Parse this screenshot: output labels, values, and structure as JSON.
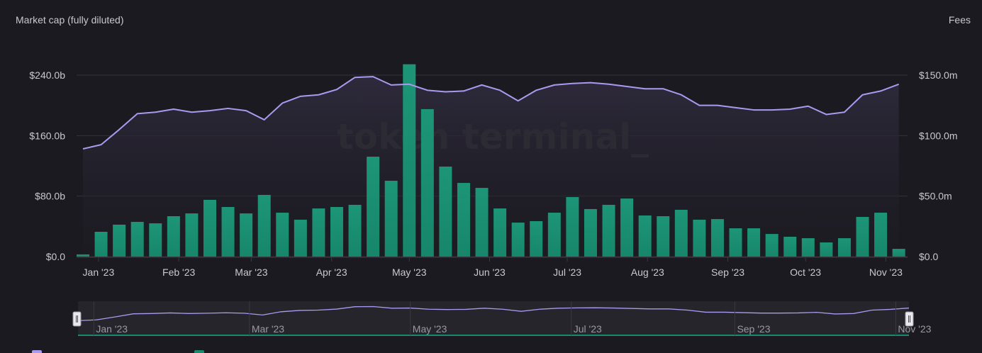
{
  "chart_data": {
    "type": "bar+line",
    "watermark": "token terminal_",
    "left_axis": {
      "title": "Market cap (fully diluted)",
      "ticks": [
        "$0.0",
        "$80.0b",
        "$160.0b",
        "$240.0b"
      ],
      "tick_values": [
        0,
        80,
        160,
        240
      ],
      "range": [
        0,
        240
      ],
      "unit": "billion USD"
    },
    "right_axis": {
      "title": "Fees",
      "ticks": [
        "$0.0",
        "$50.0m",
        "$100.0m",
        "$150.0m"
      ],
      "tick_values": [
        0,
        50,
        100,
        150
      ],
      "range": [
        0,
        150
      ],
      "unit": "million USD"
    },
    "x_ticks": [
      {
        "date": "2023-01-01",
        "label": "Jan '23"
      },
      {
        "date": "2023-02-01",
        "label": "Feb '23"
      },
      {
        "date": "2023-03-01",
        "label": "Mar '23"
      },
      {
        "date": "2023-04-01",
        "label": "Apr '23"
      },
      {
        "date": "2023-05-01",
        "label": "May '23"
      },
      {
        "date": "2023-06-01",
        "label": "Jun '23"
      },
      {
        "date": "2023-07-01",
        "label": "Jul '23"
      },
      {
        "date": "2023-08-01",
        "label": "Aug '23"
      },
      {
        "date": "2023-09-01",
        "label": "Sep '23"
      },
      {
        "date": "2023-10-01",
        "label": "Oct '23"
      },
      {
        "date": "2023-11-01",
        "label": "Nov '23"
      }
    ],
    "x_start": "2022-12-26",
    "x_interval": "week",
    "grid": true,
    "series": [
      {
        "kind": "line",
        "axis": "left",
        "color": "#a99af0",
        "values": [
          142.5,
          148,
          168,
          189,
          191,
          195,
          191,
          193,
          196,
          193,
          181,
          203,
          212,
          214,
          221,
          237,
          238,
          227,
          228,
          220,
          218,
          219,
          227,
          220,
          206,
          220,
          227,
          229,
          230,
          228,
          225,
          222,
          222,
          214,
          200,
          200,
          197,
          194,
          194,
          195,
          199,
          188,
          191,
          214,
          219,
          228
        ]
      },
      {
        "kind": "bar",
        "axis": "right",
        "color": "#1a8a6e",
        "values": [
          1.8,
          20.5,
          26.4,
          28.7,
          27.5,
          33.4,
          35.7,
          46.9,
          41,
          35.7,
          51,
          36.3,
          30.5,
          39.8,
          41,
          42.8,
          82.6,
          62.7,
          159,
          121.9,
          74.4,
          60.9,
          56.8,
          39.8,
          28.1,
          29.3,
          36.3,
          49.2,
          39.3,
          42.8,
          48,
          34,
          33.4,
          38.7,
          30.5,
          31,
          23.4,
          23.4,
          18.7,
          16.4,
          15.2,
          11.7,
          15.2,
          32.8,
          36.3,
          6.4
        ]
      }
    ],
    "navigator": {
      "labels": [
        {
          "date": "2023-01-01",
          "label": "Jan '23"
        },
        {
          "date": "2023-03-01",
          "label": "Mar '23"
        },
        {
          "date": "2023-05-01",
          "label": "May '23"
        },
        {
          "date": "2023-07-01",
          "label": "Jul '23"
        },
        {
          "date": "2023-09-01",
          "label": "Sep '23"
        },
        {
          "date": "2023-11-01",
          "label": "Nov '23"
        }
      ]
    },
    "legend_colors": [
      "#a99af0",
      "#1a8a6e"
    ]
  }
}
